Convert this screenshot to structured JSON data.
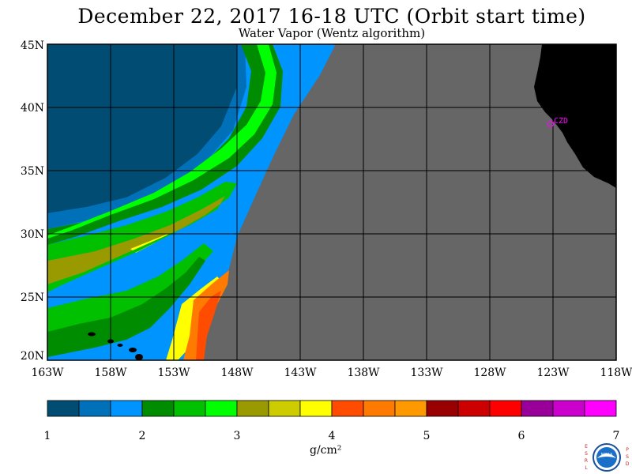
{
  "title": "December 22, 2017  16-18 UTC  (Orbit start time)",
  "subtitle": "Water Vapor (Wentz algorithm)",
  "map": {
    "lat_labels": [
      "45N",
      "40N",
      "35N",
      "30N",
      "25N",
      "20N"
    ],
    "lon_labels": [
      "163W",
      "158W",
      "153W",
      "148W",
      "143W",
      "138W",
      "133W",
      "128W",
      "123W",
      "118W"
    ],
    "station_label": "CZD",
    "no_data_color": "#666666",
    "land_color": "#000000",
    "station_color": "#ff00ff"
  },
  "colorbar": {
    "colors": [
      "#004c73",
      "#0070b8",
      "#0094ff",
      "#008c00",
      "#00c000",
      "#00ff00",
      "#999900",
      "#cccc00",
      "#ffff00",
      "#ff4c00",
      "#ff7a00",
      "#ff9900",
      "#990000",
      "#cc0000",
      "#ff0000",
      "#990099",
      "#cc00cc",
      "#ff00ff"
    ],
    "tick_labels": [
      "1",
      "2",
      "3",
      "4",
      "5",
      "6",
      "7"
    ],
    "units": "g/cm²"
  },
  "logo": {
    "left_letters": "ESRL",
    "right_letters": "PSD",
    "text": "NOAA"
  }
}
